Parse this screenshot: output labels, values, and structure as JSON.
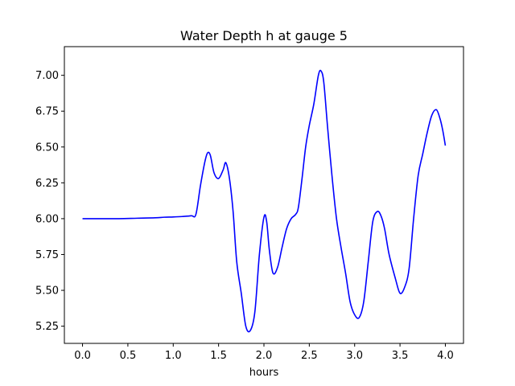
{
  "chart_data": {
    "type": "line",
    "title": "Water Depth h at gauge 5",
    "xlabel": "hours",
    "ylabel": "",
    "xlim": [
      -0.2,
      4.2
    ],
    "ylim": [
      5.13,
      7.2
    ],
    "xticks": [
      0.0,
      0.5,
      1.0,
      1.5,
      2.0,
      2.5,
      3.0,
      3.5,
      4.0
    ],
    "xtick_labels": [
      "0.0",
      "0.5",
      "1.0",
      "1.5",
      "2.0",
      "2.5",
      "3.0",
      "3.5",
      "4.0"
    ],
    "yticks": [
      5.25,
      5.5,
      5.75,
      6.0,
      6.25,
      6.5,
      6.75,
      7.0
    ],
    "ytick_labels": [
      "5.25",
      "5.50",
      "5.75",
      "6.00",
      "6.25",
      "6.50",
      "6.75",
      "7.00"
    ],
    "grid": false,
    "series": [
      {
        "color": "#0000ff",
        "x": [
          0.0,
          0.2,
          0.4,
          0.6,
          0.8,
          0.9,
          1.0,
          1.1,
          1.2,
          1.25,
          1.3,
          1.35,
          1.38,
          1.41,
          1.45,
          1.5,
          1.55,
          1.58,
          1.62,
          1.66,
          1.7,
          1.75,
          1.8,
          1.85,
          1.9,
          1.95,
          2.0,
          2.03,
          2.06,
          2.1,
          2.15,
          2.2,
          2.25,
          2.3,
          2.35,
          2.38,
          2.42,
          2.46,
          2.5,
          2.55,
          2.6,
          2.63,
          2.66,
          2.7,
          2.75,
          2.8,
          2.85,
          2.9,
          2.95,
          3.0,
          3.05,
          3.1,
          3.15,
          3.2,
          3.25,
          3.29,
          3.33,
          3.38,
          3.45,
          3.5,
          3.55,
          3.6,
          3.65,
          3.7,
          3.75,
          3.8,
          3.85,
          3.9,
          3.94,
          3.97,
          4.0
        ],
        "y": [
          6.0,
          6.0,
          6.0,
          6.003,
          6.006,
          6.01,
          6.012,
          6.015,
          6.02,
          6.03,
          6.23,
          6.4,
          6.46,
          6.44,
          6.32,
          6.28,
          6.34,
          6.39,
          6.28,
          6.05,
          5.7,
          5.48,
          5.25,
          5.22,
          5.35,
          5.75,
          6.01,
          5.98,
          5.78,
          5.62,
          5.66,
          5.8,
          5.93,
          6.0,
          6.03,
          6.08,
          6.28,
          6.5,
          6.65,
          6.8,
          7.0,
          7.03,
          6.95,
          6.65,
          6.3,
          6.0,
          5.8,
          5.62,
          5.42,
          5.33,
          5.31,
          5.42,
          5.7,
          5.98,
          6.05,
          6.02,
          5.93,
          5.75,
          5.58,
          5.48,
          5.52,
          5.65,
          6.0,
          6.3,
          6.45,
          6.6,
          6.72,
          6.76,
          6.7,
          6.62,
          6.51
        ]
      }
    ]
  }
}
